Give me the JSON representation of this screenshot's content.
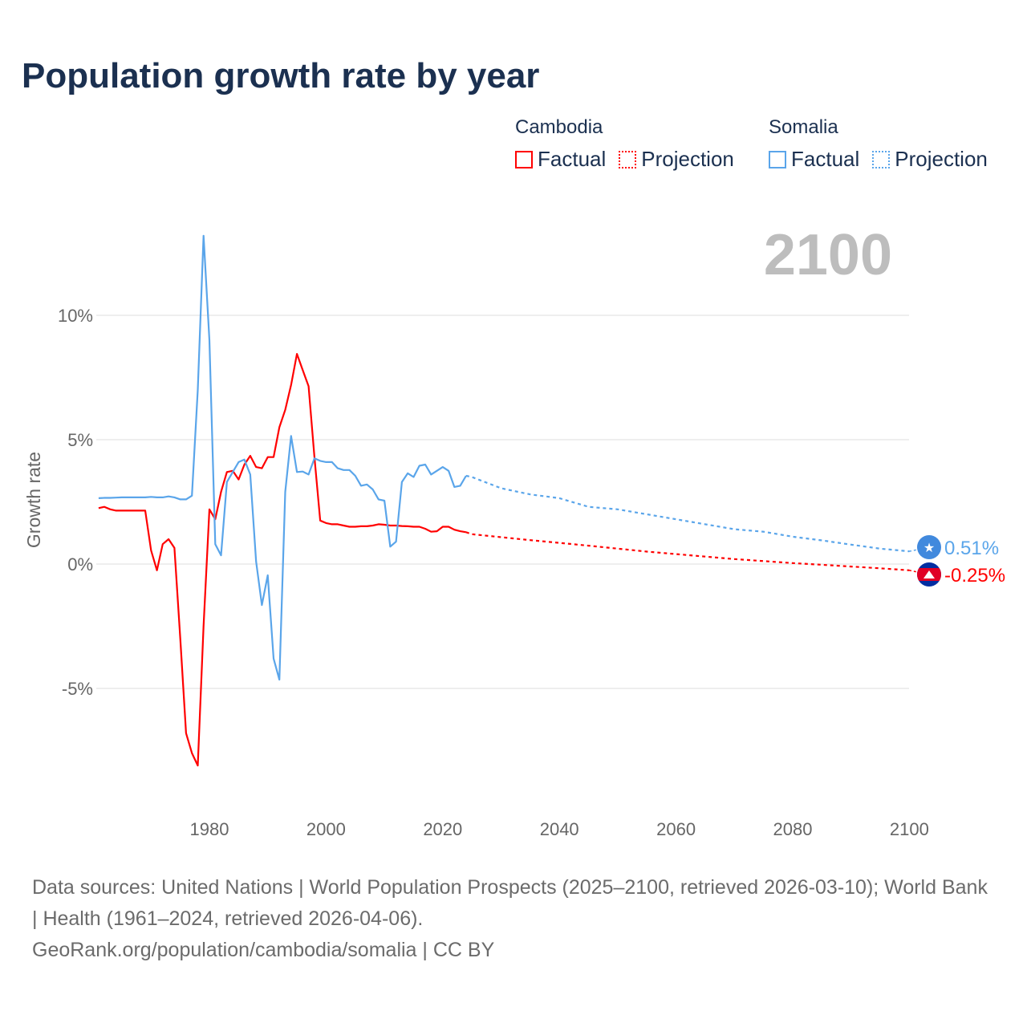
{
  "chart_data": {
    "type": "line",
    "title": "Population growth rate by year",
    "ylabel": "Growth rate",
    "xlabel": "",
    "year_watermark": "2100",
    "xlim": [
      1961,
      2100
    ],
    "ylim": [
      -10,
      13.5
    ],
    "x_ticks": [
      1980,
      2000,
      2020,
      2040,
      2060,
      2080,
      2100
    ],
    "x_tick_labels": [
      "1980",
      "2000",
      "2020",
      "2040",
      "2060",
      "2080",
      "2100"
    ],
    "y_ticks": [
      10,
      5,
      0,
      -5
    ],
    "y_tick_labels": [
      "10%",
      "5%",
      "0%",
      "-5%"
    ],
    "grid": true,
    "legend": {
      "placement": "top-right",
      "groups": [
        {
          "name": "Cambodia",
          "factual": "Factual",
          "projection": "Projection"
        },
        {
          "name": "Somalia",
          "factual": "Factual",
          "projection": "Projection"
        }
      ]
    },
    "series": [
      {
        "name": "Cambodia",
        "color": "#ff0000",
        "end_label": "-0.25%",
        "factual": {
          "x": [
            1961,
            1962,
            1963,
            1964,
            1965,
            1966,
            1967,
            1968,
            1969,
            1970,
            1971,
            1972,
            1973,
            1974,
            1975,
            1976,
            1977,
            1978,
            1979,
            1980,
            1981,
            1982,
            1983,
            1984,
            1985,
            1986,
            1987,
            1988,
            1989,
            1990,
            1991,
            1992,
            1993,
            1994,
            1995,
            1996,
            1997,
            1998,
            1999,
            2000,
            2001,
            2002,
            2003,
            2004,
            2005,
            2006,
            2007,
            2008,
            2009,
            2010,
            2011,
            2012,
            2013,
            2014,
            2015,
            2016,
            2017,
            2018,
            2019,
            2020,
            2021,
            2022,
            2023,
            2024
          ],
          "y": [
            2.25,
            2.3,
            2.2,
            2.15,
            2.15,
            2.15,
            2.15,
            2.15,
            2.15,
            0.55,
            -0.25,
            0.8,
            1.0,
            0.65,
            -3.0,
            -6.8,
            -7.6,
            -8.1,
            -2.5,
            2.2,
            1.8,
            2.9,
            3.7,
            3.75,
            3.4,
            4.0,
            4.35,
            3.9,
            3.85,
            4.3,
            4.3,
            5.5,
            6.2,
            7.2,
            8.45,
            7.8,
            7.15,
            4.3,
            1.75,
            1.65,
            1.6,
            1.6,
            1.55,
            1.5,
            1.5,
            1.52,
            1.52,
            1.55,
            1.6,
            1.58,
            1.55,
            1.55,
            1.53,
            1.52,
            1.5,
            1.5,
            1.42,
            1.3,
            1.32,
            1.5,
            1.5,
            1.38,
            1.32,
            1.28
          ]
        },
        "projection": {
          "x": [
            2024,
            2025,
            2030,
            2035,
            2040,
            2045,
            2050,
            2055,
            2060,
            2065,
            2070,
            2075,
            2080,
            2085,
            2090,
            2095,
            2100
          ],
          "y": [
            1.28,
            1.2,
            1.08,
            0.96,
            0.85,
            0.74,
            0.62,
            0.5,
            0.4,
            0.3,
            0.2,
            0.12,
            0.04,
            -0.03,
            -0.1,
            -0.17,
            -0.25
          ]
        }
      },
      {
        "name": "Somalia",
        "color": "#5aa5ea",
        "end_label": "0.51%",
        "factual": {
          "x": [
            1961,
            1962,
            1963,
            1964,
            1965,
            1966,
            1967,
            1968,
            1969,
            1970,
            1971,
            1972,
            1973,
            1974,
            1975,
            1976,
            1977,
            1978,
            1979,
            1980,
            1981,
            1982,
            1983,
            1984,
            1985,
            1986,
            1987,
            1988,
            1989,
            1990,
            1991,
            1992,
            1993,
            1994,
            1995,
            1996,
            1997,
            1998,
            1999,
            2000,
            2001,
            2002,
            2003,
            2004,
            2005,
            2006,
            2007,
            2008,
            2009,
            2010,
            2011,
            2012,
            2013,
            2014,
            2015,
            2016,
            2017,
            2018,
            2019,
            2020,
            2021,
            2022,
            2023,
            2024
          ],
          "y": [
            2.65,
            2.66,
            2.66,
            2.67,
            2.68,
            2.68,
            2.68,
            2.68,
            2.68,
            2.7,
            2.68,
            2.68,
            2.72,
            2.68,
            2.6,
            2.6,
            2.75,
            7.0,
            13.2,
            9.0,
            0.8,
            0.35,
            3.3,
            3.7,
            4.1,
            4.2,
            3.6,
            0.1,
            -1.65,
            -0.45,
            -3.8,
            -4.65,
            2.9,
            5.15,
            3.7,
            3.72,
            3.6,
            4.25,
            4.15,
            4.1,
            4.1,
            3.85,
            3.78,
            3.78,
            3.55,
            3.15,
            3.2,
            3.0,
            2.6,
            2.55,
            0.7,
            0.9,
            3.3,
            3.65,
            3.5,
            3.95,
            4.0,
            3.6,
            3.75,
            3.9,
            3.75,
            3.1,
            3.15,
            3.55
          ]
        },
        "projection": {
          "x": [
            2024,
            2025,
            2030,
            2035,
            2040,
            2045,
            2050,
            2055,
            2060,
            2065,
            2070,
            2075,
            2080,
            2085,
            2090,
            2095,
            2100
          ],
          "y": [
            3.55,
            3.5,
            3.05,
            2.8,
            2.65,
            2.3,
            2.2,
            2.0,
            1.8,
            1.6,
            1.4,
            1.3,
            1.1,
            0.95,
            0.78,
            0.62,
            0.51
          ]
        }
      }
    ]
  },
  "footer": {
    "sources": "Data sources: United Nations | World Population Prospects (2025–2100, retrieved 2026-03-10); World Bank | Health (1961–2024, retrieved 2026-04-06).",
    "link": "GeoRank.org/population/cambodia/somalia | CC BY"
  }
}
